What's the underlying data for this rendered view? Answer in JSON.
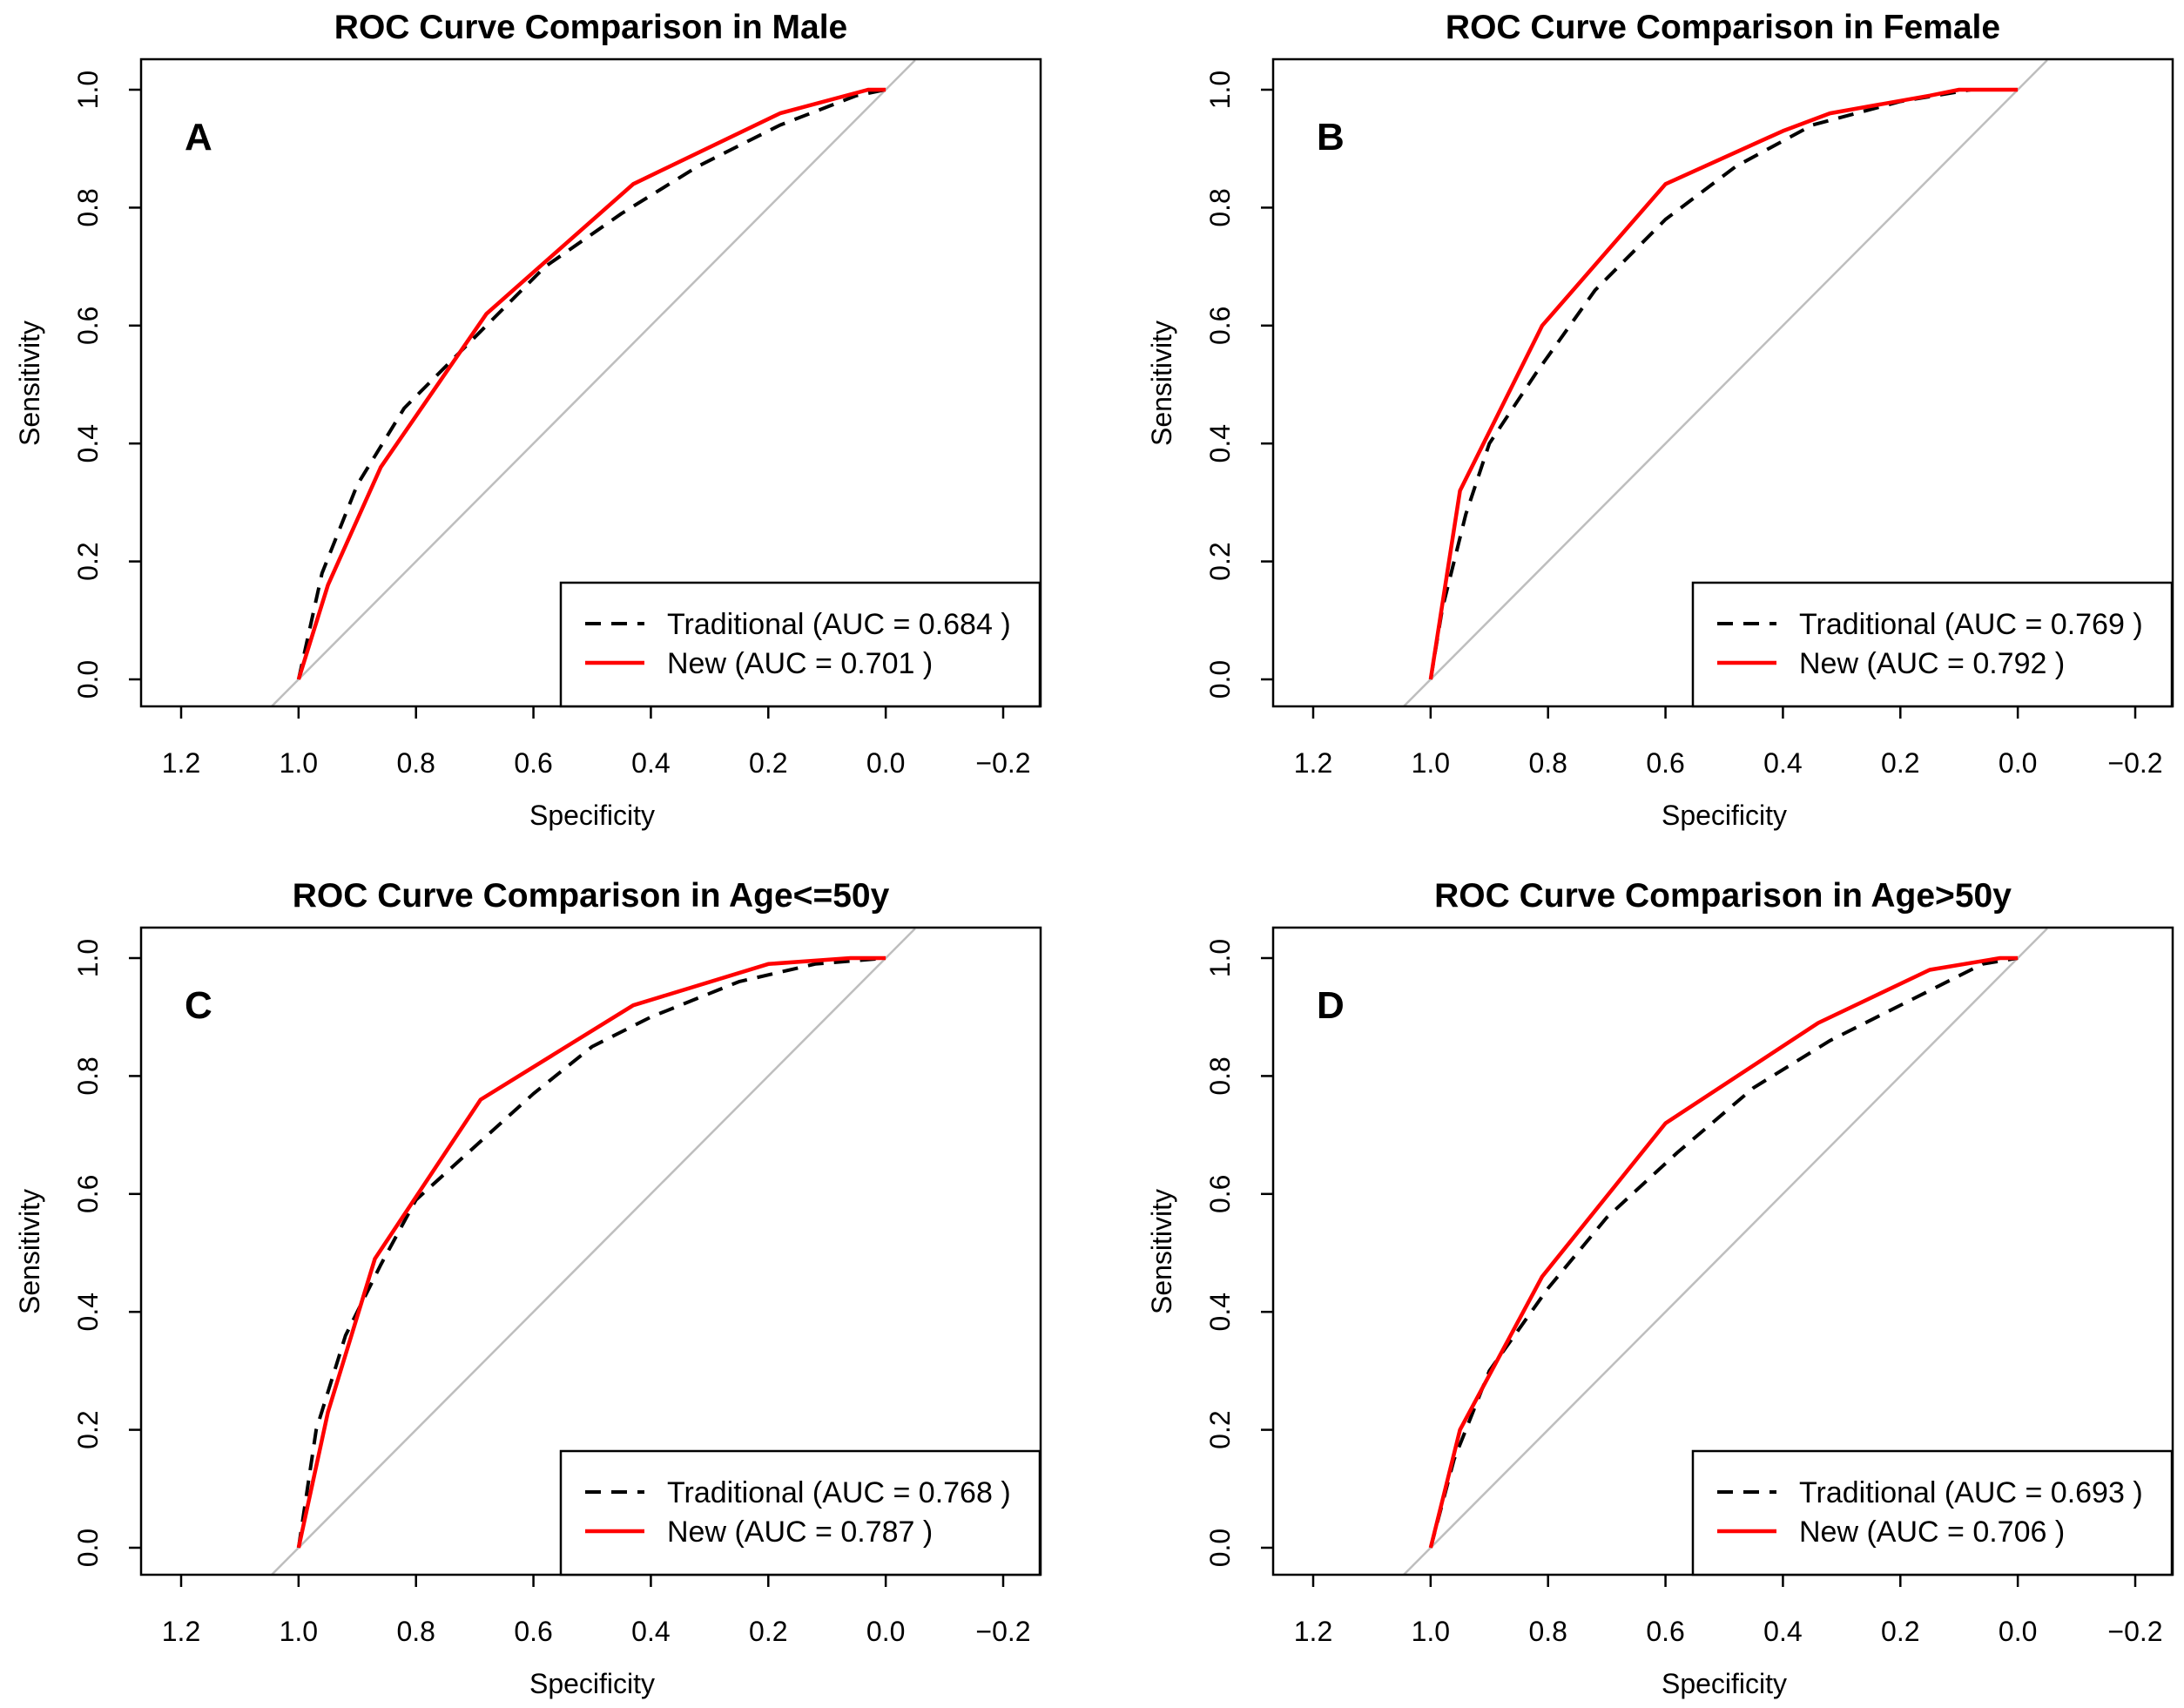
{
  "chart_data": [
    {
      "type": "line",
      "panel_label": "A",
      "title": "ROC Curve Comparison in Male",
      "xlabel": "Specificity",
      "ylabel": "Sensitivity",
      "xlim": [
        1.2,
        -0.2
      ],
      "ylim": [
        0,
        1
      ],
      "x_reversed": true,
      "x_ticks": [
        "1.2",
        "1.0",
        "0.8",
        "0.6",
        "0.4",
        "0.2",
        "0.0",
        "−0.2"
      ],
      "y_ticks": [
        "0.0",
        "0.2",
        "0.4",
        "0.6",
        "0.8",
        "1.0"
      ],
      "legend_position": "bottom-right",
      "reference_line": true,
      "series": [
        {
          "name": "Traditional (AUC = 0.684 )",
          "color": "#000000",
          "style": "dashed",
          "x": [
            1.0,
            0.96,
            0.9,
            0.82,
            0.7,
            0.58,
            0.45,
            0.32,
            0.18,
            0.05,
            0.0
          ],
          "y": [
            0.0,
            0.18,
            0.33,
            0.46,
            0.58,
            0.7,
            0.79,
            0.87,
            0.94,
            0.99,
            1.0
          ]
        },
        {
          "name": "New (AUC = 0.701 )",
          "color": "#ff0000",
          "style": "solid",
          "x": [
            1.0,
            0.95,
            0.86,
            0.68,
            0.43,
            0.18,
            0.03,
            0.0
          ],
          "y": [
            0.0,
            0.16,
            0.36,
            0.62,
            0.84,
            0.96,
            1.0,
            1.0
          ]
        }
      ]
    },
    {
      "type": "line",
      "panel_label": "B",
      "title": "ROC Curve Comparison in Female",
      "xlabel": "Specificity",
      "ylabel": "Sensitivity",
      "xlim": [
        1.2,
        -0.2
      ],
      "ylim": [
        0,
        1
      ],
      "x_reversed": true,
      "x_ticks": [
        "1.2",
        "1.0",
        "0.8",
        "0.6",
        "0.4",
        "0.2",
        "0.0",
        "−0.2"
      ],
      "y_ticks": [
        "0.0",
        "0.2",
        "0.4",
        "0.6",
        "0.8",
        "1.0"
      ],
      "legend_position": "bottom-right",
      "reference_line": true,
      "series": [
        {
          "name": "Traditional (AUC = 0.769 )",
          "color": "#000000",
          "style": "dashed",
          "x": [
            1.0,
            0.98,
            0.94,
            0.9,
            0.82,
            0.72,
            0.6,
            0.48,
            0.35,
            0.2,
            0.08,
            0.0
          ],
          "y": [
            0.0,
            0.12,
            0.28,
            0.4,
            0.52,
            0.66,
            0.78,
            0.87,
            0.94,
            0.98,
            1.0,
            1.0
          ]
        },
        {
          "name": "New (AUC = 0.792 )",
          "color": "#ff0000",
          "style": "solid",
          "x": [
            1.0,
            0.95,
            0.81,
            0.6,
            0.4,
            0.32,
            0.15,
            0.1,
            0.0
          ],
          "y": [
            0.0,
            0.32,
            0.6,
            0.84,
            0.93,
            0.96,
            0.99,
            1.0,
            1.0
          ]
        }
      ]
    },
    {
      "type": "line",
      "panel_label": "C",
      "title": "ROC Curve Comparison in Age<=50y",
      "xlabel": "Specificity",
      "ylabel": "Sensitivity",
      "xlim": [
        1.2,
        -0.2
      ],
      "ylim": [
        0,
        1
      ],
      "x_reversed": true,
      "x_ticks": [
        "1.2",
        "1.0",
        "0.8",
        "0.6",
        "0.4",
        "0.2",
        "0.0",
        "−0.2"
      ],
      "y_ticks": [
        "0.0",
        "0.2",
        "0.4",
        "0.6",
        "0.8",
        "1.0"
      ],
      "legend_position": "bottom-right",
      "reference_line": true,
      "series": [
        {
          "name": "Traditional (AUC = 0.768 )",
          "color": "#000000",
          "style": "dashed",
          "x": [
            1.0,
            0.97,
            0.92,
            0.86,
            0.8,
            0.7,
            0.6,
            0.5,
            0.4,
            0.25,
            0.12,
            0.0
          ],
          "y": [
            0.0,
            0.2,
            0.36,
            0.48,
            0.59,
            0.68,
            0.77,
            0.85,
            0.9,
            0.96,
            0.99,
            1.0
          ]
        },
        {
          "name": "New (AUC = 0.787 )",
          "color": "#ff0000",
          "style": "solid",
          "x": [
            1.0,
            0.95,
            0.87,
            0.69,
            0.43,
            0.2,
            0.06,
            0.0
          ],
          "y": [
            0.0,
            0.23,
            0.49,
            0.76,
            0.92,
            0.99,
            1.0,
            1.0
          ]
        }
      ]
    },
    {
      "type": "line",
      "panel_label": "D",
      "title": "ROC Curve Comparison in Age>50y",
      "xlabel": "Specificity",
      "ylabel": "Sensitivity",
      "xlim": [
        1.2,
        -0.2
      ],
      "ylim": [
        0,
        1
      ],
      "x_reversed": true,
      "x_ticks": [
        "1.2",
        "1.0",
        "0.8",
        "0.6",
        "0.4",
        "0.2",
        "0.0",
        "−0.2"
      ],
      "y_ticks": [
        "0.0",
        "0.2",
        "0.4",
        "0.6",
        "0.8",
        "1.0"
      ],
      "legend_position": "bottom-right",
      "reference_line": true,
      "series": [
        {
          "name": "Traditional (AUC = 0.693 )",
          "color": "#000000",
          "style": "dashed",
          "x": [
            1.0,
            0.96,
            0.9,
            0.8,
            0.7,
            0.58,
            0.45,
            0.32,
            0.18,
            0.06,
            0.0
          ],
          "y": [
            0.0,
            0.15,
            0.3,
            0.44,
            0.56,
            0.67,
            0.78,
            0.86,
            0.93,
            0.99,
            1.0
          ]
        },
        {
          "name": "New (AUC = 0.706 )",
          "color": "#ff0000",
          "style": "solid",
          "x": [
            1.0,
            0.95,
            0.81,
            0.6,
            0.34,
            0.15,
            0.03,
            0.0
          ],
          "y": [
            0.0,
            0.2,
            0.46,
            0.72,
            0.89,
            0.98,
            1.0,
            1.0
          ]
        }
      ]
    }
  ]
}
